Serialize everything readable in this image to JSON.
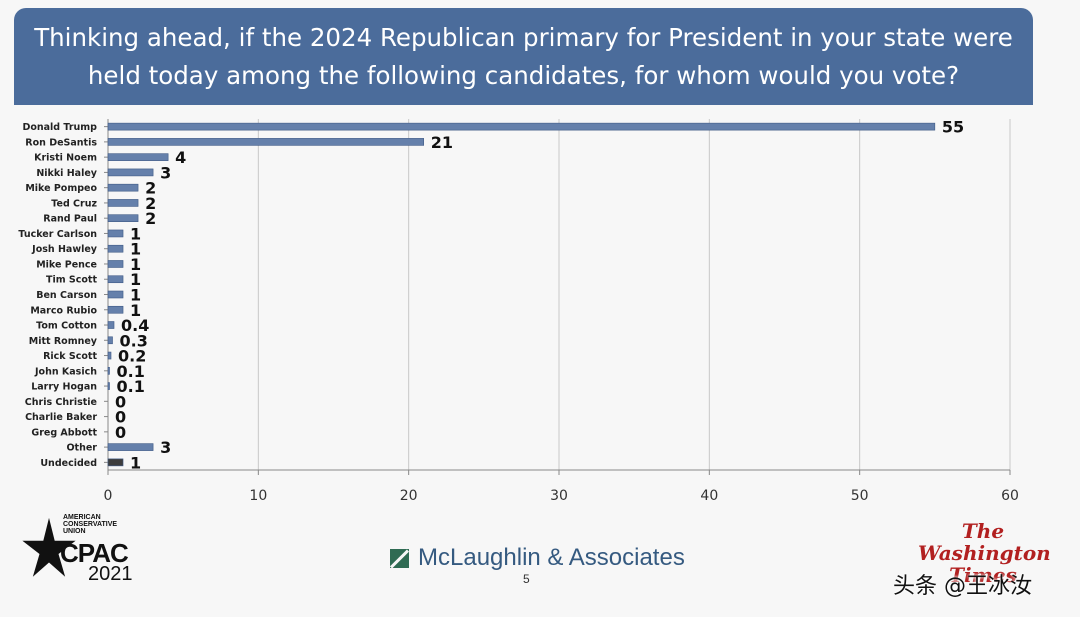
{
  "chart_data": {
    "type": "bar",
    "orientation": "horizontal",
    "title": "Thinking ahead, if the 2024 Republican primary for President in your state were held today among the following candidates, for whom would you vote?",
    "categories": [
      "Donald Trump",
      "Ron DeSantis",
      "Kristi Noem",
      "Nikki Haley",
      "Mike Pompeo",
      "Ted Cruz",
      "Rand Paul",
      "Tucker Carlson",
      "Josh Hawley",
      "Mike Pence",
      "Tim Scott",
      "Ben Carson",
      "Marco Rubio",
      "Tom Cotton",
      "Mitt Romney",
      "Rick Scott",
      "John Kasich",
      "Larry Hogan",
      "Chris Christie",
      "Charlie Baker",
      "Greg Abbott",
      "Other",
      "Undecided"
    ],
    "values": [
      55,
      21,
      4,
      3,
      2,
      2,
      2,
      1,
      1,
      1,
      1,
      1,
      1,
      0.4,
      0.3,
      0.2,
      0.1,
      0.1,
      0,
      0,
      0,
      3,
      1
    ],
    "value_labels": [
      "55",
      "21",
      "4",
      "3",
      "2",
      "2",
      "2",
      "1",
      "1",
      "1",
      "1",
      "1",
      "1",
      "0.4",
      "0.3",
      "0.2",
      "0.1",
      "0.1",
      "0",
      "0",
      "0",
      "3",
      "1"
    ],
    "xlim": [
      0,
      60
    ],
    "xticks": [
      0,
      10,
      20,
      30,
      40,
      50,
      60
    ],
    "xlabel": "",
    "ylabel": "",
    "grid": "vertical",
    "bar_color": "#6580ab",
    "undecided_color": "#3d3d3d"
  },
  "footer": {
    "cpac_org": "AMERICAN\nCONSERVATIVE\nUNION",
    "cpac_name": "CPAC",
    "cpac_year": "2021",
    "pollster": "McLaughlin & Associates",
    "page_number": "5",
    "newspaper_lines": [
      "The",
      "Washington",
      "Times"
    ],
    "watermark": "头条 @王冰汝"
  }
}
